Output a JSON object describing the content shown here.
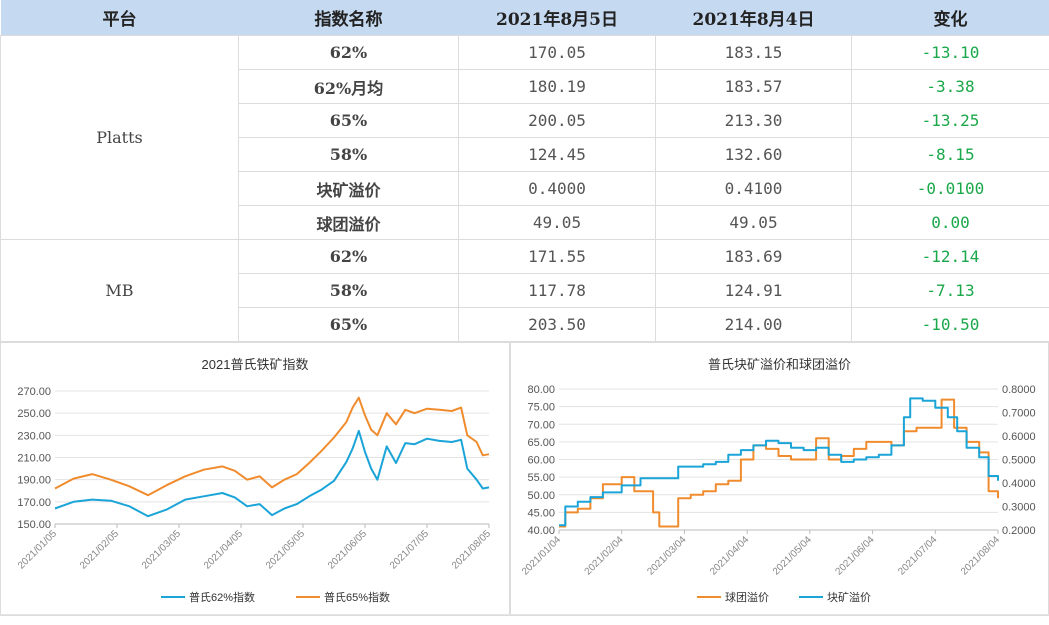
{
  "table": {
    "headers": [
      "平台",
      "指数名称",
      "2021年8月5日",
      "2021年8月4日",
      "变化"
    ],
    "platforms": [
      {
        "name": "Platts",
        "rows": [
          {
            "index": "62%",
            "d1": "170.05",
            "d2": "183.15",
            "chg": "-13.10"
          },
          {
            "index": "62%月均",
            "d1": "180.19",
            "d2": "183.57",
            "chg": "-3.38"
          },
          {
            "index": "65%",
            "d1": "200.05",
            "d2": "213.30",
            "chg": "-13.25"
          },
          {
            "index": "58%",
            "d1": "124.45",
            "d2": "132.60",
            "chg": "-8.15"
          },
          {
            "index": "块矿溢价",
            "d1": "0.4000",
            "d2": "0.4100",
            "chg": "-0.0100"
          },
          {
            "index": "球团溢价",
            "d1": "49.05",
            "d2": "49.05",
            "chg": "0.00"
          }
        ]
      },
      {
        "name": "MB",
        "rows": [
          {
            "index": "62%",
            "d1": "171.55",
            "d2": "183.69",
            "chg": "-12.14"
          },
          {
            "index": "58%",
            "d1": "117.78",
            "d2": "124.91",
            "chg": "-7.13"
          },
          {
            "index": "65%",
            "d1": "203.50",
            "d2": "214.00",
            "chg": "-10.50"
          }
        ]
      }
    ]
  },
  "chart_data": [
    {
      "type": "line",
      "title": "2021普氏铁矿指数",
      "ylim": [
        150,
        270
      ],
      "yticks": [
        "270.00",
        "250.00",
        "230.00",
        "210.00",
        "190.00",
        "170.00",
        "150.00"
      ],
      "xticks": [
        "2021/01/05",
        "2021/02/05",
        "2021/03/05",
        "2021/04/05",
        "2021/05/05",
        "2021/06/05",
        "2021/07/05",
        "2021/08/05"
      ],
      "x_range": [
        0,
        7
      ],
      "legend_position": "bottom",
      "series": [
        {
          "name": "普氏62%指数",
          "color": "#1aa4d8",
          "points": [
            [
              0,
              164
            ],
            [
              0.3,
              170
            ],
            [
              0.6,
              172
            ],
            [
              0.9,
              171
            ],
            [
              1.2,
              166
            ],
            [
              1.5,
              157
            ],
            [
              1.8,
              163
            ],
            [
              2.1,
              172
            ],
            [
              2.4,
              175
            ],
            [
              2.7,
              178
            ],
            [
              2.9,
              174
            ],
            [
              3.1,
              166
            ],
            [
              3.3,
              168
            ],
            [
              3.5,
              158
            ],
            [
              3.7,
              164
            ],
            [
              3.9,
              168
            ],
            [
              4.1,
              175
            ],
            [
              4.3,
              181
            ],
            [
              4.5,
              189
            ],
            [
              4.7,
              206
            ],
            [
              4.8,
              218
            ],
            [
              4.9,
              234
            ],
            [
              5.0,
              215
            ],
            [
              5.1,
              200
            ],
            [
              5.2,
              190
            ],
            [
              5.35,
              220
            ],
            [
              5.5,
              205
            ],
            [
              5.65,
              223
            ],
            [
              5.8,
              222
            ],
            [
              6.0,
              227
            ],
            [
              6.2,
              225
            ],
            [
              6.4,
              224
            ],
            [
              6.55,
              226
            ],
            [
              6.65,
              200
            ],
            [
              6.8,
              190
            ],
            [
              6.9,
              182
            ],
            [
              7.0,
              183
            ]
          ]
        },
        {
          "name": "普氏65%指数",
          "color": "#f08c2e",
          "points": [
            [
              0,
              182
            ],
            [
              0.3,
              191
            ],
            [
              0.6,
              195
            ],
            [
              0.9,
              190
            ],
            [
              1.2,
              184
            ],
            [
              1.5,
              176
            ],
            [
              1.8,
              185
            ],
            [
              2.1,
              193
            ],
            [
              2.4,
              199
            ],
            [
              2.7,
              202
            ],
            [
              2.9,
              198
            ],
            [
              3.1,
              190
            ],
            [
              3.3,
              193
            ],
            [
              3.5,
              183
            ],
            [
              3.7,
              190
            ],
            [
              3.9,
              195
            ],
            [
              4.1,
              205
            ],
            [
              4.3,
              216
            ],
            [
              4.5,
              228
            ],
            [
              4.7,
              242
            ],
            [
              4.8,
              255
            ],
            [
              4.9,
              264
            ],
            [
              5.0,
              248
            ],
            [
              5.1,
              235
            ],
            [
              5.2,
              230
            ],
            [
              5.35,
              250
            ],
            [
              5.5,
              240
            ],
            [
              5.65,
              253
            ],
            [
              5.8,
              250
            ],
            [
              6.0,
              254
            ],
            [
              6.2,
              253
            ],
            [
              6.4,
              252
            ],
            [
              6.55,
              255
            ],
            [
              6.65,
              230
            ],
            [
              6.8,
              224
            ],
            [
              6.9,
              212
            ],
            [
              7.0,
              213
            ]
          ]
        }
      ]
    },
    {
      "type": "line",
      "title": "普氏块矿溢价和球团溢价",
      "ylim_left": [
        40,
        80
      ],
      "ylim_right": [
        0.2,
        0.8
      ],
      "yticks_left": [
        "80.00",
        "75.00",
        "70.00",
        "65.00",
        "60.00",
        "55.00",
        "50.00",
        "45.00",
        "40.00"
      ],
      "yticks_right": [
        "0.8000",
        "0.7000",
        "0.6000",
        "0.5000",
        "0.4000",
        "0.3000",
        "0.2000"
      ],
      "xticks": [
        "2021/01/04",
        "2021/02/04",
        "2021/03/04",
        "2021/04/04",
        "2021/05/04",
        "2021/06/04",
        "2021/07/04",
        "2021/08/04"
      ],
      "x_range": [
        0,
        7
      ],
      "legend_position": "bottom",
      "series": [
        {
          "name": "球团溢价",
          "color": "#f08c2e",
          "axis": "left",
          "points": [
            [
              0,
              41
            ],
            [
              0.1,
              45
            ],
            [
              0.3,
              46
            ],
            [
              0.5,
              49
            ],
            [
              0.7,
              53
            ],
            [
              1.0,
              55
            ],
            [
              1.2,
              51
            ],
            [
              1.5,
              45
            ],
            [
              1.6,
              41
            ],
            [
              1.8,
              41
            ],
            [
              1.9,
              49
            ],
            [
              2.1,
              50
            ],
            [
              2.3,
              51
            ],
            [
              2.5,
              53
            ],
            [
              2.7,
              54
            ],
            [
              2.9,
              60
            ],
            [
              3.1,
              64
            ],
            [
              3.3,
              63
            ],
            [
              3.5,
              61
            ],
            [
              3.7,
              60
            ],
            [
              3.9,
              60
            ],
            [
              4.1,
              66
            ],
            [
              4.3,
              60
            ],
            [
              4.5,
              61
            ],
            [
              4.7,
              63
            ],
            [
              4.9,
              65
            ],
            [
              5.1,
              65
            ],
            [
              5.3,
              64
            ],
            [
              5.5,
              68
            ],
            [
              5.7,
              69
            ],
            [
              5.9,
              69
            ],
            [
              6.1,
              77
            ],
            [
              6.3,
              69
            ],
            [
              6.5,
              65
            ],
            [
              6.7,
              62
            ],
            [
              6.85,
              51
            ],
            [
              7.0,
              49
            ]
          ]
        },
        {
          "name": "块矿溢价",
          "color": "#1aa4d8",
          "axis": "right",
          "points": [
            [
              0,
              0.22
            ],
            [
              0.1,
              0.3
            ],
            [
              0.3,
              0.32
            ],
            [
              0.5,
              0.34
            ],
            [
              0.7,
              0.36
            ],
            [
              1.0,
              0.39
            ],
            [
              1.3,
              0.42
            ],
            [
              1.6,
              0.42
            ],
            [
              1.9,
              0.47
            ],
            [
              2.1,
              0.47
            ],
            [
              2.3,
              0.48
            ],
            [
              2.5,
              0.49
            ],
            [
              2.7,
              0.52
            ],
            [
              2.9,
              0.54
            ],
            [
              3.1,
              0.56
            ],
            [
              3.3,
              0.58
            ],
            [
              3.5,
              0.57
            ],
            [
              3.7,
              0.55
            ],
            [
              3.9,
              0.54
            ],
            [
              4.1,
              0.55
            ],
            [
              4.3,
              0.52
            ],
            [
              4.5,
              0.49
            ],
            [
              4.7,
              0.5
            ],
            [
              4.9,
              0.51
            ],
            [
              5.1,
              0.52
            ],
            [
              5.3,
              0.56
            ],
            [
              5.5,
              0.68
            ],
            [
              5.6,
              0.76
            ],
            [
              5.8,
              0.75
            ],
            [
              6.0,
              0.72
            ],
            [
              6.2,
              0.68
            ],
            [
              6.35,
              0.62
            ],
            [
              6.5,
              0.55
            ],
            [
              6.7,
              0.51
            ],
            [
              6.85,
              0.43
            ],
            [
              7.0,
              0.41
            ]
          ]
        }
      ]
    }
  ]
}
